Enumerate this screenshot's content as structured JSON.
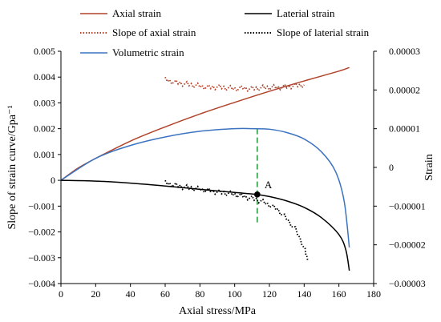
{
  "chart_data": {
    "type": "line",
    "xlabel": "Axial stress/MPa",
    "ylabel_left": "Slope of strain curve/Gpa⁻¹",
    "ylabel_right": "Strain",
    "xlim": [
      0,
      180
    ],
    "ylim_left": [
      -0.004,
      0.005
    ],
    "ylim_right": [
      -3e-05,
      3e-05
    ],
    "x_ticks": [
      "0",
      "20",
      "40",
      "60",
      "80",
      "100",
      "120",
      "140",
      "160",
      "180"
    ],
    "y_left_ticks": [
      "0.005",
      "0.004",
      "0.003",
      "0.002",
      "0.001",
      "0",
      "-0.001",
      "-0.002",
      "-0.003",
      "-0.004"
    ],
    "y_right_ticks": [
      "0.00003",
      "0.00002",
      "0.00001",
      "0",
      "-0.00001",
      "-0.00002",
      "-0.00003"
    ],
    "grid": false,
    "legend_position": "top",
    "series": [
      {
        "name": "Axial strain",
        "axis": "left",
        "color": "#b0442a",
        "style": "solid",
        "x": [
          0,
          10,
          20,
          40,
          60,
          80,
          100,
          120,
          140,
          160,
          166
        ],
        "y": [
          0,
          0.00048,
          0.00085,
          0.00152,
          0.00207,
          0.00257,
          0.00302,
          0.00345,
          0.00385,
          0.00423,
          0.00437
        ]
      },
      {
        "name": "Slope of axial strain",
        "axis": "left",
        "color": "#b0442a",
        "style": "dotted",
        "x": [
          60,
          65,
          70,
          75,
          80,
          85,
          90,
          95,
          100,
          105,
          110,
          115,
          120,
          125,
          130,
          135,
          140
        ],
        "y": [
          0.0039,
          0.0038,
          0.00375,
          0.0037,
          0.00365,
          0.0036,
          0.00362,
          0.00358,
          0.00355,
          0.00357,
          0.00355,
          0.00358,
          0.0036,
          0.0036,
          0.00363,
          0.00367,
          0.0037
        ]
      },
      {
        "name": "Volumetric strain",
        "axis": "left",
        "color": "#3b73c0",
        "style": "solid",
        "x": [
          0,
          20,
          40,
          60,
          80,
          100,
          110,
          120,
          130,
          140,
          150,
          158,
          163,
          166
        ],
        "y": [
          0,
          0.00085,
          0.00135,
          0.00168,
          0.0019,
          0.002,
          0.002,
          0.00198,
          0.00185,
          0.0016,
          0.0011,
          0.00035,
          -0.0008,
          -0.0026
        ]
      },
      {
        "name": "Laterial strain",
        "axis": "left",
        "color": "#000000",
        "style": "solid",
        "x": [
          0,
          20,
          40,
          60,
          80,
          100,
          113,
          120,
          130,
          140,
          150,
          160,
          164,
          166
        ],
        "y": [
          0,
          -3e-05,
          -0.00011,
          -0.00022,
          -0.00035,
          -0.00047,
          -0.00055,
          -0.00063,
          -0.0008,
          -0.00105,
          -0.00145,
          -0.0021,
          -0.0027,
          -0.0035
        ]
      },
      {
        "name": "Slope of  laterial strain",
        "axis": "left",
        "color": "#000000",
        "style": "dotted",
        "x": [
          60,
          65,
          70,
          75,
          80,
          85,
          90,
          95,
          100,
          105,
          110,
          115,
          120,
          125,
          130,
          135,
          140,
          142
        ],
        "y": [
          -0.0001,
          -0.00018,
          -0.00025,
          -0.0003,
          -0.00035,
          -0.0004,
          -0.00045,
          -0.0005,
          -0.00055,
          -0.00062,
          -0.0007,
          -0.0008,
          -0.00095,
          -0.00115,
          -0.0015,
          -0.0019,
          -0.0026,
          -0.0031
        ]
      }
    ],
    "annotation": {
      "label": "A",
      "x": 113,
      "y": -0.00055,
      "guide_top_y": 0.002,
      "guide_color": "#2e9e44"
    }
  }
}
